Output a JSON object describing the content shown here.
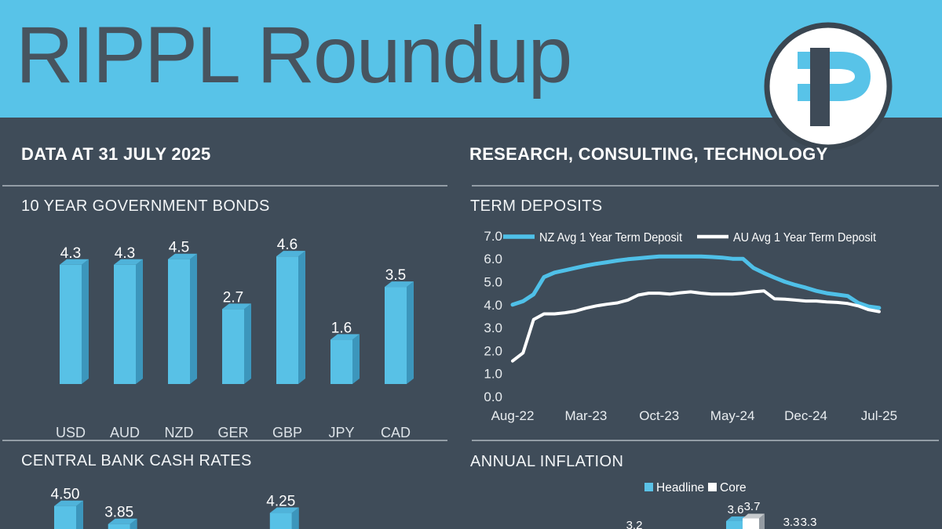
{
  "header": {
    "title": "RIPPL Roundup",
    "logo": {
      "letter": "P"
    }
  },
  "subheader": {
    "left": "DATA AT 31 JULY 2025",
    "right": "RESEARCH, CONSULTING, TECHNOLOGY"
  },
  "colors": {
    "header_blue": "#58C3E8",
    "background": "#3F4C59",
    "bar_front": "#58C1E6",
    "bar_top": "#4FB3DA",
    "bar_side": "#3C96BC",
    "nz_line": "#4FC0E8",
    "au_line": "#FFFFFF",
    "core_bar_side": "#959CA3",
    "core_bar_top": "#C6CACD",
    "title_text": "#47545F"
  },
  "chart_data": [
    {
      "id": "bonds",
      "type": "bar",
      "style": "3d-column",
      "title": "10 YEAR GOVERNMENT BONDS",
      "categories": [
        "USD",
        "AUD",
        "NZD",
        "GER",
        "GBP",
        "JPY",
        "CAD"
      ],
      "values": [
        4.3,
        4.3,
        4.5,
        2.7,
        4.6,
        1.6,
        3.5
      ],
      "value_labels": [
        "4.3",
        "4.3",
        "4.5",
        "2.7",
        "4.6",
        "1.6",
        "3.5"
      ],
      "ylim": [
        0,
        5
      ],
      "grid": false
    },
    {
      "id": "term_deposits",
      "type": "line",
      "title": "TERM DEPOSITS",
      "x_range": "monthly, Aug-22 to Jul-25",
      "x_tick_labels": [
        "Aug-22",
        "Mar-23",
        "Oct-23",
        "May-24",
        "Dec-24",
        "Jul-25"
      ],
      "y_ticks": [
        0,
        1,
        2,
        3,
        4,
        5,
        6,
        7
      ],
      "y_tick_labels": [
        "0.0",
        "1.0",
        "2.0",
        "3.0",
        "4.0",
        "5.0",
        "6.0",
        "7.0"
      ],
      "ylim": [
        0,
        7
      ],
      "grid": false,
      "legend_position": "top",
      "series": [
        {
          "name": "NZ Avg 1 Year Term Deposit",
          "color": "#4FC0E8",
          "values": [
            4.0,
            4.15,
            4.45,
            5.2,
            5.4,
            5.5,
            5.6,
            5.7,
            5.78,
            5.85,
            5.92,
            5.98,
            6.02,
            6.06,
            6.1,
            6.1,
            6.1,
            6.1,
            6.1,
            6.08,
            6.05,
            6.0,
            6.0,
            5.6,
            5.38,
            5.18,
            5.0,
            4.86,
            4.74,
            4.6,
            4.5,
            4.44,
            4.38,
            4.08,
            3.92,
            3.86
          ]
        },
        {
          "name": "AU Avg 1 Year Term Deposit",
          "color": "#FFFFFF",
          "values": [
            1.55,
            1.9,
            3.35,
            3.6,
            3.6,
            3.65,
            3.72,
            3.85,
            3.95,
            4.02,
            4.08,
            4.2,
            4.42,
            4.5,
            4.5,
            4.46,
            4.52,
            4.56,
            4.5,
            4.46,
            4.46,
            4.46,
            4.5,
            4.56,
            4.6,
            4.26,
            4.24,
            4.2,
            4.16,
            4.16,
            4.12,
            4.1,
            4.05,
            3.95,
            3.78,
            3.7
          ]
        }
      ]
    },
    {
      "id": "cash_rates",
      "type": "bar",
      "style": "3d-column",
      "title": "CENTRAL BANK CASH RATES",
      "cropped": true,
      "visible_bars": [
        {
          "label": "4.50",
          "value": 4.5,
          "slot": 0
        },
        {
          "label": "3.85",
          "value": 3.85,
          "slot": 1
        },
        {
          "label": "4.25",
          "value": 4.25,
          "slot": 4
        }
      ]
    },
    {
      "id": "inflation",
      "type": "bar",
      "style": "3d-column-pairs",
      "title": "ANNUAL INFLATION",
      "cropped": true,
      "legend": [
        {
          "name": "Headline",
          "color": "#5BC2E7"
        },
        {
          "name": "Core",
          "color": "#FFFFFF"
        }
      ],
      "visible_labels": [
        "3.2",
        "3.6",
        "3.7",
        "3.3",
        "3.3"
      ],
      "visible_groups": [
        {
          "headline": 3.2
        },
        {
          "headline": 3.6,
          "core": 3.7
        },
        {
          "headline": 3.3,
          "core": 3.3
        }
      ]
    }
  ]
}
